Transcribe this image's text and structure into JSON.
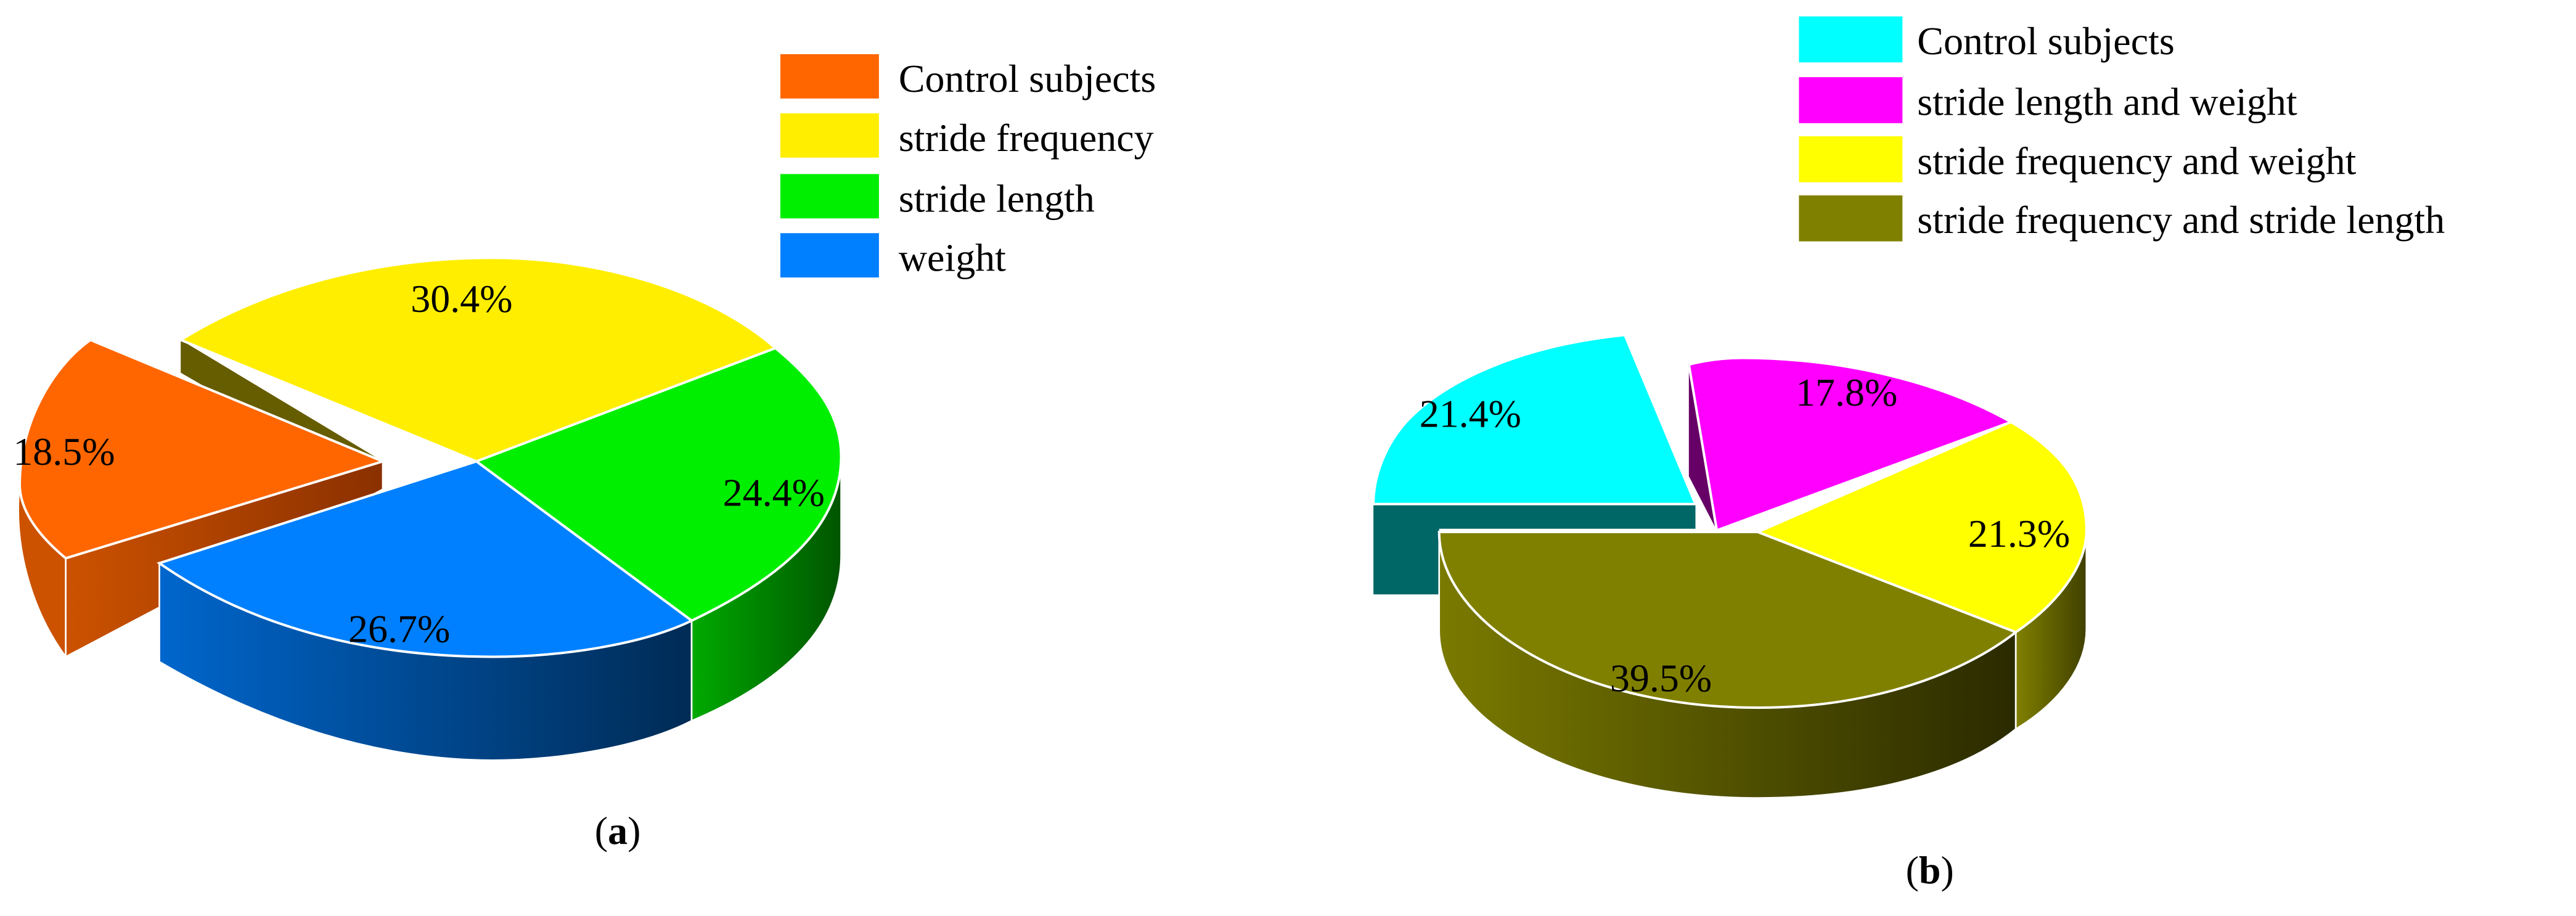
{
  "chart_data": [
    {
      "type": "pie",
      "panel_label": "a",
      "categories": [
        "Control subjects",
        "stride frequency",
        "stride length",
        "weight"
      ],
      "values": [
        18.5,
        30.4,
        24.4,
        26.7
      ],
      "value_labels": [
        "18.5%",
        "30.4%",
        "24.4%",
        "26.7%"
      ],
      "colors": [
        "#ff6600",
        "#ffee00",
        "#00ee00",
        "#0080ff"
      ],
      "exploded": [
        "Control subjects"
      ],
      "three_d": true,
      "legend_position": "top-right"
    },
    {
      "type": "pie",
      "panel_label": "b",
      "categories": [
        "Control subjects",
        "stride length and weight",
        "stride frequency and weight",
        "stride frequency and stride length"
      ],
      "values": [
        21.4,
        17.8,
        21.3,
        39.5
      ],
      "value_labels": [
        "21.4%",
        "17.8%",
        "21.3%",
        "39.5%"
      ],
      "colors": [
        "#00ffff",
        "#ff00ff",
        "#ffff00",
        "#808000"
      ],
      "exploded": [
        "Control subjects",
        "stride length and weight"
      ],
      "three_d": true,
      "legend_position": "top-right"
    }
  ]
}
